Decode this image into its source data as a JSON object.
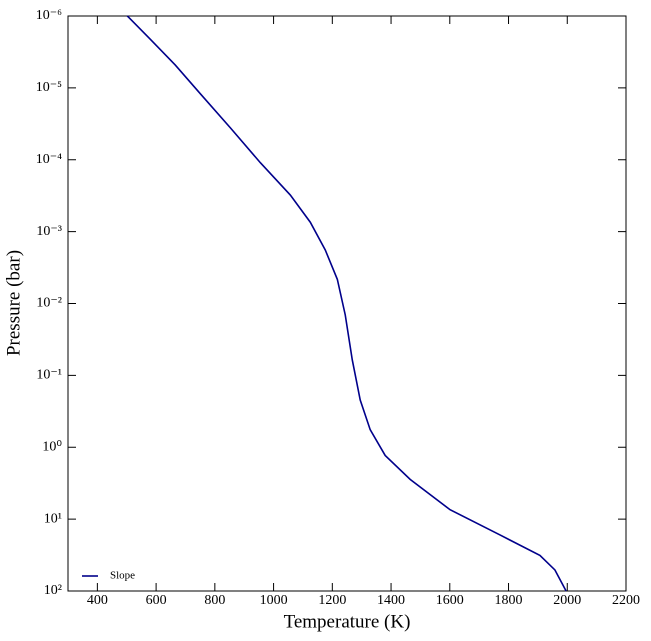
{
  "chart_data": {
    "type": "line",
    "xlabel": "Temperature (K)",
    "ylabel": "Pressure (bar)",
    "x": [
      502,
      580,
      665,
      750,
      853,
      955,
      1057,
      1125,
      1176,
      1217,
      1244,
      1268,
      1295,
      1329,
      1380,
      1465,
      1601,
      1771,
      1907,
      1958,
      1996
    ],
    "series": [
      {
        "name": "Slope",
        "color": "#00008b",
        "values": [
          1e-06,
          2.1e-06,
          4.8e-06,
          1.2e-05,
          3.6e-05,
          0.00011,
          0.00031,
          0.00074,
          0.0018,
          0.0046,
          0.0144,
          0.061,
          0.22,
          0.57,
          1.3,
          2.8,
          7.4,
          16.6,
          32,
          51,
          100
        ]
      }
    ],
    "xlim": [
      300,
      2200
    ],
    "xticks": [
      400,
      600,
      800,
      1000,
      1200,
      1400,
      1600,
      1800,
      2000,
      2200
    ],
    "ylim": [
      1e-06,
      100
    ],
    "yscale": "log",
    "yinverted": true,
    "yticks": [
      {
        "value": 1e-06,
        "label": "10⁻⁶"
      },
      {
        "value": 1e-05,
        "label": "10⁻⁵"
      },
      {
        "value": 0.0001,
        "label": "10⁻⁴"
      },
      {
        "value": 0.001,
        "label": "10⁻³"
      },
      {
        "value": 0.01,
        "label": "10⁻²"
      },
      {
        "value": 0.1,
        "label": "10⁻¹"
      },
      {
        "value": 1,
        "label": "10⁰"
      },
      {
        "value": 10,
        "label": "10¹"
      },
      {
        "value": 100,
        "label": "10²"
      }
    ],
    "legend": "lower left",
    "grid": false
  }
}
